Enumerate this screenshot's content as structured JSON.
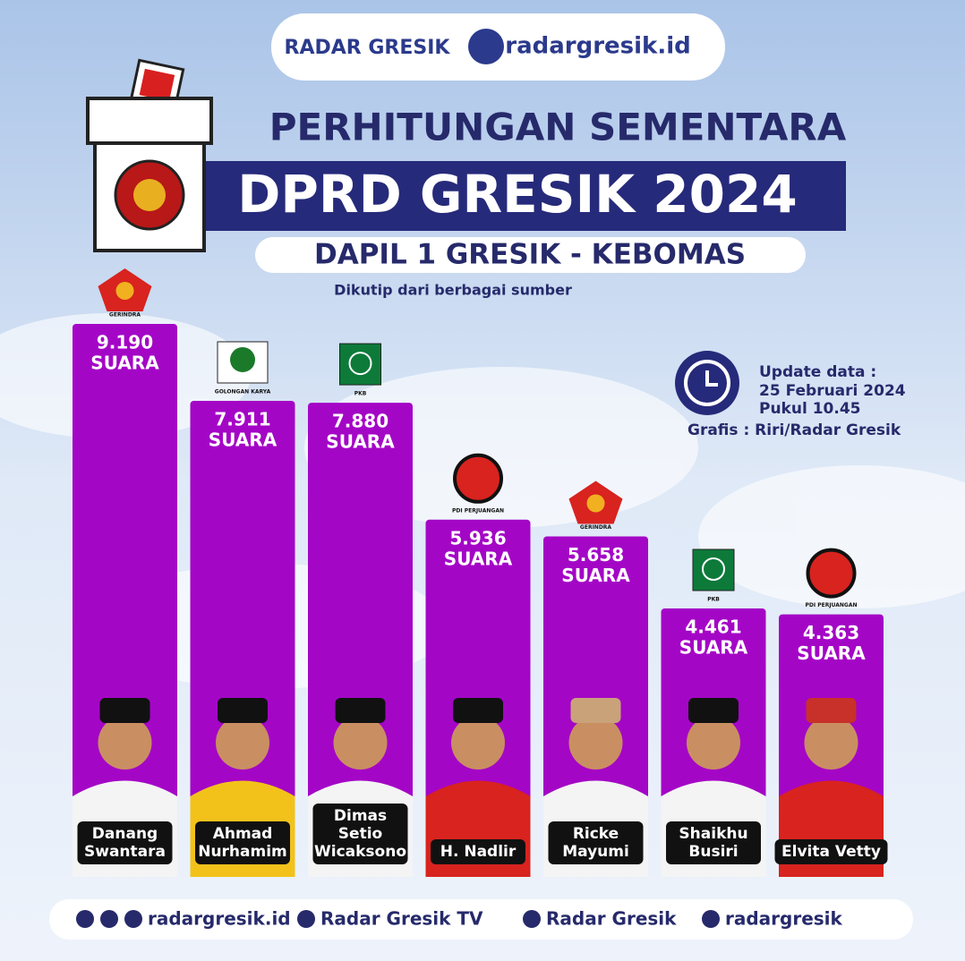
{
  "brand": {
    "logo_text": "RADAR GRESIK",
    "site": "radargresik.id"
  },
  "chart_data": {
    "type": "bar",
    "title": "PERHITUNGAN SEMENTARA",
    "subtitle": "DPRD GRESIK 2024",
    "region": "DAPIL 1 GRESIK - KEBOMAS",
    "source": "Dikutip dari berbagai sumber",
    "update": [
      "Update data :",
      "25 Februari 2024",
      "Pukul 10.45"
    ],
    "credit": "Grafis : Riri/Radar Gresik",
    "categories": [
      "Danang\nSwantara",
      "Ahmad\nNurhamim",
      "Dimas\nSetio\nWicaksono",
      "H. Nadlir",
      "Ricke\nMayumi",
      "Shaikhu\nBusiri",
      "Elvita Vetty"
    ],
    "parties": [
      "GERINDRA",
      "GOLONGAN KARYA",
      "PKB",
      "PDI PERJUANGAN",
      "GERINDRA",
      "PKB",
      "PDI PERJUANGAN"
    ],
    "values": [
      9190,
      7911,
      7880,
      5936,
      5658,
      4461,
      4363
    ],
    "value_labels": [
      "9.190",
      "7.911",
      "7.880",
      "5.936",
      "5.658",
      "4.461",
      "4.363"
    ],
    "unit": "SUARA",
    "color": "#a406c6"
  },
  "footer": {
    "links": [
      "radargresik.id",
      "Radar Gresik TV",
      "Radar Gresik",
      "radargresik"
    ]
  }
}
